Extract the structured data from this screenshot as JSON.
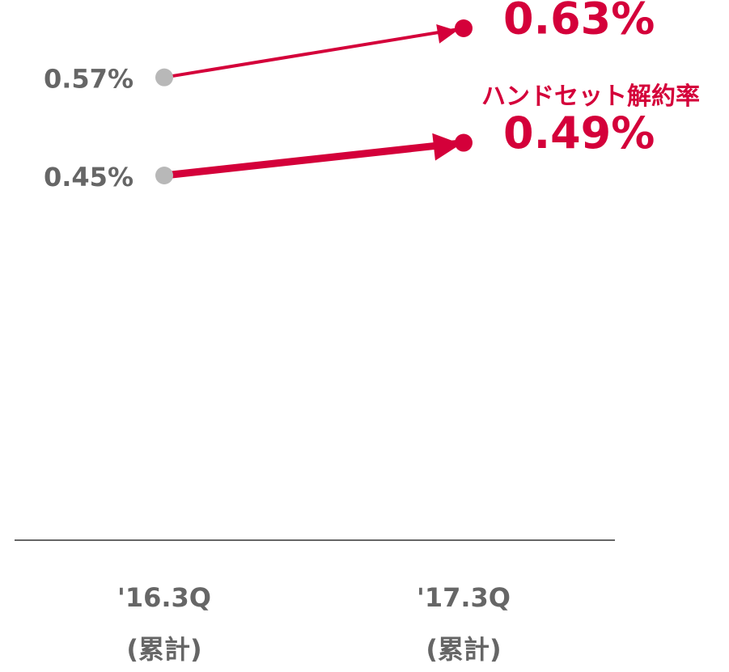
{
  "chart_data": {
    "type": "line",
    "categories": [
      [
        "'16.3Q",
        "(累計)"
      ],
      [
        "'17.3Q",
        "(累計)"
      ]
    ],
    "series": [
      {
        "color": "#d4003a",
        "start_color": "#b8b8b8",
        "width": 4,
        "values": [
          0.57,
          0.63
        ],
        "value_labels": [
          "0.57%",
          "0.63%"
        ]
      },
      {
        "name": "ハンドセット解約率",
        "color": "#d4003a",
        "start_color": "#b8b8b8",
        "width": 9,
        "values": [
          0.45,
          0.49
        ],
        "value_labels": [
          "0.45%",
          "0.49%"
        ]
      }
    ]
  }
}
